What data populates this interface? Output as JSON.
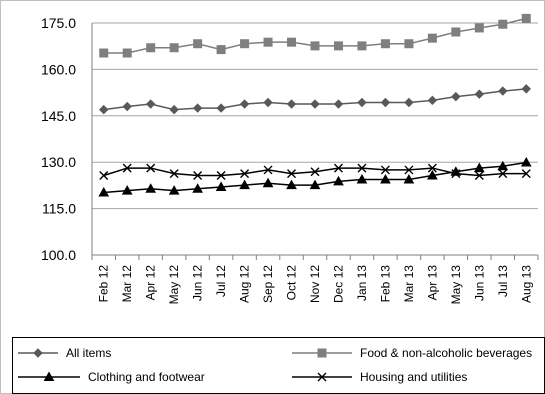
{
  "chart_data": {
    "type": "line",
    "title": "",
    "xlabel": "",
    "ylabel": "",
    "ylim": [
      100,
      175
    ],
    "yticks": [
      "100.0",
      "115.0",
      "130.0",
      "145.0",
      "160.0",
      "175.0"
    ],
    "ytick_values": [
      100,
      115,
      130,
      145,
      160,
      175
    ],
    "grid": "horizontal",
    "legend_position": "bottom",
    "categories": [
      "Feb 12",
      "Mar 12",
      "Apr 12",
      "May 12",
      "Jun 12",
      "Jul 12",
      "Aug 12",
      "Sep 12",
      "Oct 12",
      "Nov 12",
      "Dec 12",
      "Jan 13",
      "Feb 13",
      "Mar 13",
      "Apr 13",
      "May 13",
      "Jun 13",
      "Jul 13",
      "Aug 13"
    ],
    "series": [
      {
        "name": "All items",
        "marker": "diamond",
        "color": "#595959",
        "values": [
          147.0,
          148.0,
          148.8,
          147.0,
          147.5,
          147.5,
          148.8,
          149.3,
          148.8,
          148.8,
          148.8,
          149.3,
          149.3,
          149.3,
          150.0,
          151.2,
          152.0,
          153.0,
          153.7
        ]
      },
      {
        "name": "Food & non-alcoholic beverages",
        "marker": "square",
        "color": "#7f7f7f",
        "values": [
          165.3,
          165.3,
          167.0,
          167.0,
          168.3,
          166.4,
          168.3,
          168.8,
          168.8,
          167.6,
          167.6,
          167.6,
          168.3,
          168.3,
          170.1,
          172.1,
          173.4,
          174.6,
          176.5
        ]
      },
      {
        "name": "Clothing and footwear",
        "marker": "triangle",
        "color": "#000000",
        "values": [
          120.2,
          120.8,
          121.4,
          120.8,
          121.4,
          122.0,
          122.6,
          123.2,
          122.6,
          122.6,
          123.8,
          124.4,
          124.4,
          124.4,
          125.7,
          126.9,
          128.1,
          128.7,
          129.9
        ]
      },
      {
        "name": "Housing and utilities",
        "marker": "x",
        "color": "#000000",
        "values": [
          125.7,
          128.1,
          128.1,
          126.3,
          125.7,
          125.7,
          126.3,
          127.5,
          126.3,
          126.9,
          128.1,
          128.1,
          127.5,
          127.5,
          128.1,
          126.3,
          125.7,
          126.3,
          126.3
        ]
      }
    ]
  }
}
